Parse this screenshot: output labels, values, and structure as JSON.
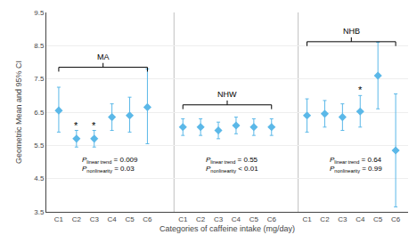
{
  "chart_data": {
    "type": "scatter",
    "xlabel": "Categories of caffeine intake (mg/day)",
    "ylabel": "Geometric Mean and 95% CI",
    "categories": [
      "C1",
      "C2",
      "C3",
      "C4",
      "C5",
      "C6"
    ],
    "series": [
      {
        "name": "MA",
        "values": [
          6.55,
          5.7,
          5.7,
          6.35,
          6.4,
          6.65
        ],
        "ci_low": [
          5.9,
          5.45,
          5.45,
          5.95,
          5.9,
          5.55
        ],
        "ci_high": [
          7.25,
          5.95,
          5.95,
          6.75,
          6.95,
          7.8
        ],
        "significant": [
          false,
          true,
          true,
          false,
          false,
          false
        ],
        "p_values": [
          [
            "P",
            "linear trend",
            " = 0.009"
          ],
          [
            "P",
            "nonlinearity",
            " = 0.03"
          ]
        ],
        "bracket_y": 7.85
      },
      {
        "name": "NHW",
        "values": [
          6.05,
          6.05,
          5.95,
          6.1,
          6.05,
          6.05
        ],
        "ci_low": [
          5.8,
          5.8,
          5.7,
          5.85,
          5.8,
          5.8
        ],
        "ci_high": [
          6.3,
          6.3,
          6.2,
          6.35,
          6.3,
          6.3
        ],
        "significant": [
          false,
          false,
          false,
          false,
          false,
          false
        ],
        "p_values": [
          [
            "P",
            "linear trend",
            " = 0.55"
          ],
          [
            "P",
            "nonlinearity",
            " < 0.01"
          ]
        ],
        "bracket_y": 6.72
      },
      {
        "name": "NHB",
        "values": [
          6.4,
          6.45,
          6.35,
          6.52,
          7.6,
          5.35
        ],
        "ci_low": [
          5.9,
          6.05,
          5.95,
          6.05,
          6.6,
          3.65
        ],
        "ci_high": [
          6.9,
          6.85,
          6.75,
          7.0,
          8.6,
          7.05
        ],
        "significant": [
          false,
          false,
          false,
          true,
          false,
          false
        ],
        "p_values": [
          [
            "P",
            "linear trend",
            " = 0.64"
          ],
          [
            "P",
            "nonlinearity",
            " = 0.99"
          ]
        ],
        "bracket_y": 8.62
      }
    ],
    "significance_label": "*",
    "color": "#5BB8E8",
    "marker": "diamond",
    "ylim": [
      3.5,
      9.5
    ],
    "yticks": [
      3.5,
      4.5,
      5.5,
      6.5,
      7.5,
      8.5,
      9.5
    ],
    "grid": true
  }
}
